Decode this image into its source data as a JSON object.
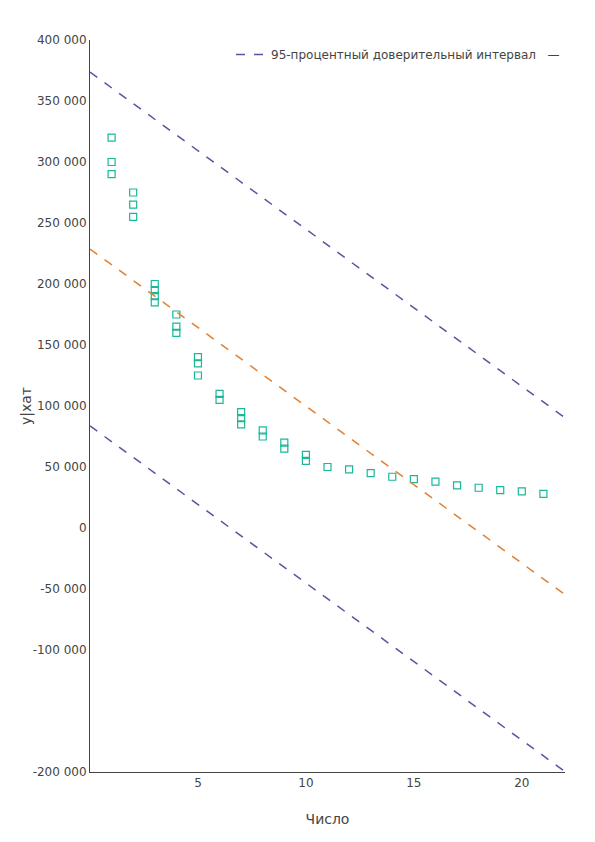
{
  "chart_data": {
    "type": "scatter",
    "x_label": "Число",
    "y_label": "у|хат",
    "xlim": [
      0,
      22
    ],
    "xticks": [
      5,
      10,
      15,
      20
    ],
    "ylim": [
      -200000,
      400000
    ],
    "yticks": [
      {
        "value": -200000,
        "label": "-200 000"
      },
      {
        "value": -100000,
        "label": "-100 000"
      },
      {
        "value": -50000,
        "label": "-50 000"
      },
      0,
      {
        "value": 50000,
        "label": "50 000"
      },
      {
        "value": 100000,
        "label": "100 000"
      },
      {
        "value": 150000,
        "label": "150 000"
      },
      {
        "value": 200000,
        "label": "200 000"
      },
      {
        "value": 250000,
        "label": "250 000"
      },
      {
        "value": 300000,
        "label": "300 000"
      },
      {
        "value": 350000,
        "label": "350 000"
      },
      {
        "value": 400000,
        "label": "400 000"
      }
    ],
    "grid": false,
    "legend": "upper right",
    "series": [
      {
        "type": "scatter",
        "color": "#18b898",
        "marker": "square-open",
        "x": [
          1,
          1,
          1,
          2,
          2,
          2,
          3,
          3,
          3,
          3,
          4,
          4,
          4,
          5,
          5,
          5,
          6,
          6,
          7,
          7,
          7,
          8,
          8,
          9,
          9,
          10,
          10,
          11,
          12,
          13,
          14,
          15,
          16,
          17,
          18,
          19,
          20,
          21
        ],
        "values": [
          320000,
          300000,
          290000,
          275000,
          265000,
          255000,
          200000,
          195000,
          190000,
          185000,
          175000,
          165000,
          160000,
          140000,
          135000,
          125000,
          110000,
          105000,
          95000,
          90000,
          85000,
          80000,
          75000,
          70000,
          65000,
          60000,
          55000,
          50000,
          48000,
          45000,
          42000,
          40000,
          38000,
          35000,
          33000,
          31000,
          30000,
          28000
        ]
      },
      {
        "type": "line",
        "name": "95-процентный доверительный интервал   —",
        "color": "#6050a0",
        "line_style": "dashed",
        "x": [
          0,
          22
        ],
        "values": [
          373692,
          90359
        ]
      },
      {
        "type": "line",
        "color": "#6050a0",
        "line_style": "dashed",
        "x": [
          0,
          22
        ],
        "values": [
          83692,
          -199641
        ]
      },
      {
        "type": "line",
        "color": "#e08030",
        "line_style": "dashed",
        "x": [
          0,
          22
        ],
        "values": [
          228692,
          -54641
        ]
      }
    ]
  }
}
